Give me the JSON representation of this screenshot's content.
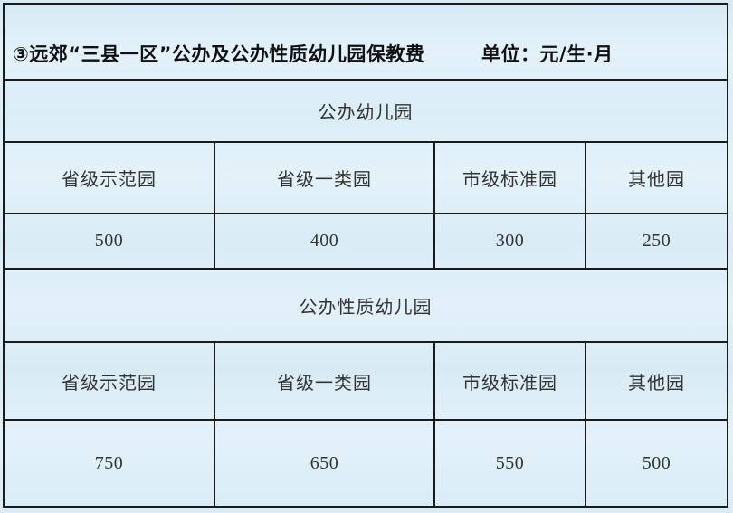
{
  "header": {
    "title": "③远郊“三县一区”公办及公办性质幼儿园保教费",
    "unit": "单位：元/生·月"
  },
  "table": {
    "sections": [
      {
        "name": "公办幼儿园",
        "columns": [
          "省级示范园",
          "省级一类园",
          "市级标准园",
          "其他园"
        ],
        "values": [
          "500",
          "400",
          "300",
          "250"
        ]
      },
      {
        "name": "公办性质幼儿园",
        "columns": [
          "省级示范园",
          "省级一类园",
          "市级标准园",
          "其他园"
        ],
        "values": [
          "750",
          "650",
          "550",
          "500"
        ]
      }
    ]
  },
  "colors": {
    "background": "#dcedf7",
    "border": "#1b1b1b",
    "title_text": "#101010",
    "cell_text": "#333333"
  }
}
